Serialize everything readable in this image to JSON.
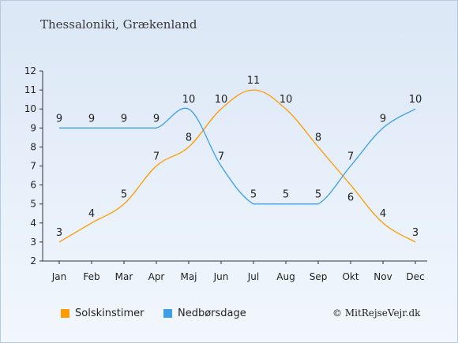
{
  "title": "Thessaloniki, Grækenland",
  "copyright": "© MitRejseVejr.dk",
  "chart_data": {
    "type": "line",
    "categories": [
      "Jan",
      "Feb",
      "Mar",
      "Apr",
      "Maj",
      "Jun",
      "Jul",
      "Aug",
      "Sep",
      "Okt",
      "Nov",
      "Dec"
    ],
    "ylim": [
      2,
      12
    ],
    "yticks": [
      2,
      3,
      4,
      5,
      6,
      7,
      8,
      9,
      10,
      11,
      12
    ],
    "grid": false,
    "legend_position": "bottom-left",
    "series": [
      {
        "name": "Solskinstimer",
        "color": "#ff9b00",
        "values": [
          3,
          4,
          5,
          7,
          8,
          10,
          11,
          10,
          8,
          6,
          4,
          3
        ]
      },
      {
        "name": "Nedbørsdage",
        "color": "#3a9ee8",
        "values": [
          9,
          9,
          9,
          9,
          10,
          7,
          5,
          5,
          5,
          7,
          9,
          10
        ]
      }
    ]
  }
}
